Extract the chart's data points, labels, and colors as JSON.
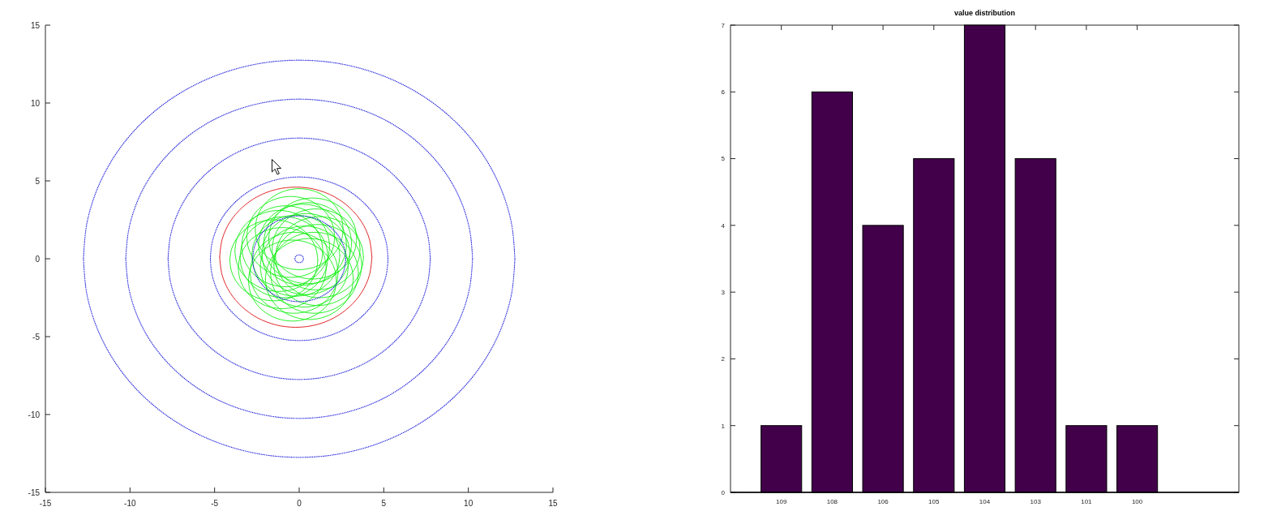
{
  "chart_data": [
    {
      "type": "line",
      "xlim": [
        -15,
        15
      ],
      "ylim": [
        -15,
        15
      ],
      "xticks": [
        -15,
        -10,
        -5,
        0,
        5,
        10,
        15
      ],
      "yticks": [
        -15,
        -10,
        -5,
        0,
        5,
        10,
        15
      ],
      "series": [
        {
          "color": "#dd1111",
          "line_style": "solid",
          "x": [
            4.3,
            4.15,
            3.7,
            2.98,
            2.05,
            0.96,
            -0.2,
            -1.36,
            -2.45,
            -3.38,
            -4.1,
            -4.55,
            -4.7
          ],
          "values": [
            0.1,
            1.26,
            2.35,
            3.28,
            4.0,
            4.45,
            4.6,
            4.45,
            4.0,
            3.28,
            2.35,
            1.26,
            0.1
          ]
        },
        {
          "color": "#dd1111",
          "line_style": "solid",
          "x": [
            -4.7,
            -4.55,
            -4.1,
            -3.38,
            -2.45,
            -1.36,
            -0.2,
            0.96,
            2.05,
            2.98,
            3.7,
            4.15,
            4.3
          ],
          "values": [
            0.1,
            -1.06,
            -2.15,
            -3.08,
            -3.8,
            -4.25,
            -4.4,
            -4.25,
            -3.8,
            -3.08,
            -2.15,
            -1.06,
            0.1
          ]
        },
        {
          "color": "#11ee11",
          "line_style": "solid",
          "x": [
            1.1,
            1.01,
            0.75,
            0.34,
            -0.2,
            -0.83,
            -1.5,
            -2.17,
            -2.8,
            -3.34,
            -3.75,
            -4.01,
            -4.1
          ],
          "values": [
            -0.1,
            0.57,
            1.2,
            1.74,
            2.15,
            2.41,
            2.5,
            2.41,
            2.15,
            1.74,
            1.2,
            0.57,
            -0.1
          ]
        },
        {
          "color": "#11ee11",
          "line_style": "solid",
          "x": [
            -4.1,
            -4.01,
            -3.75,
            -3.34,
            -2.8,
            -2.17,
            -1.5,
            -0.83,
            -0.2,
            0.34,
            0.75,
            1.01,
            1.1
          ],
          "values": [
            -0.1,
            -0.77,
            -1.4,
            -1.94,
            -2.35,
            -2.61,
            -2.7,
            -2.61,
            -2.35,
            -1.94,
            -1.4,
            -0.77,
            -0.1
          ]
        },
        {
          "color": "#11ee11",
          "line_style": "solid",
          "x": [
            2.6,
            2.51,
            2.25,
            1.84,
            1.3,
            0.67,
            0,
            -0.67,
            -1.3,
            -1.84,
            -2.25,
            -2.51,
            -2.6
          ],
          "values": [
            1.9,
            2.57,
            3.2,
            3.74,
            4.15,
            4.41,
            4.5,
            4.41,
            4.15,
            3.74,
            3.2,
            2.57,
            1.9
          ]
        },
        {
          "color": "#11ee11",
          "line_style": "solid",
          "x": [
            -2.6,
            -2.51,
            -2.25,
            -1.84,
            -1.3,
            -0.67,
            0,
            0.67,
            1.3,
            1.84,
            2.25,
            2.51,
            2.6
          ],
          "values": [
            1.9,
            1.23,
            0.6,
            0.06,
            -0.35,
            -0.61,
            -0.7,
            -0.61,
            -0.35,
            0.06,
            0.6,
            1.23,
            1.9
          ]
        },
        {
          "color": "#11ee11",
          "line_style": "solid",
          "x": [
            3.8,
            3.71,
            3.45,
            3.04,
            2.5,
            1.87,
            1.2,
            0.53,
            -0.1,
            -0.64,
            -1.05,
            -1.31,
            -1.4
          ],
          "values": [
            0.1,
            0.77,
            1.4,
            1.94,
            2.35,
            2.61,
            2.7,
            2.61,
            2.35,
            1.94,
            1.4,
            0.77,
            0.1
          ]
        },
        {
          "color": "#11ee11",
          "line_style": "solid",
          "x": [
            -1.4,
            -1.31,
            -1.05,
            -0.64,
            -0.1,
            0.53,
            1.2,
            1.87,
            2.5,
            3.04,
            3.45,
            3.71,
            3.8
          ],
          "values": [
            0.1,
            -0.57,
            -1.2,
            -1.74,
            -2.15,
            -2.41,
            -2.5,
            -2.41,
            -2.15,
            -1.74,
            -1.2,
            -0.57,
            0.1
          ]
        },
        {
          "color": "#11ee11",
          "line_style": "solid",
          "x": [
            2.2,
            2.11,
            1.85,
            1.44,
            0.9,
            0.27,
            -0.4,
            -1.07,
            -1.7,
            -2.24,
            -2.65,
            -2.91,
            -3.0
          ],
          "values": [
            -1.4,
            -0.73,
            -0.1,
            0.44,
            0.85,
            1.11,
            1.2,
            1.11,
            0.85,
            0.44,
            -0.1,
            -0.73,
            -1.4
          ]
        },
        {
          "color": "#11ee11",
          "line_style": "solid",
          "x": [
            -3.0,
            -2.91,
            -2.65,
            -2.24,
            -1.7,
            -1.07,
            -0.4,
            0.27,
            0.9,
            1.44,
            1.85,
            2.11,
            2.2
          ],
          "values": [
            -1.4,
            -2.07,
            -2.7,
            -3.24,
            -3.65,
            -3.91,
            -4.0,
            -3.91,
            -3.65,
            -3.24,
            -2.7,
            -2.07,
            -1.4
          ]
        },
        {
          "color": "#11ee11",
          "line_style": "solid",
          "x": [
            3.1,
            3.01,
            2.75,
            2.34,
            1.8,
            1.17,
            0.5,
            -0.17,
            -0.8,
            -1.34,
            -1.75,
            -2.01,
            -2.1
          ],
          "values": [
            1.0,
            1.67,
            2.3,
            2.84,
            3.25,
            3.51,
            3.6,
            3.51,
            3.25,
            2.84,
            2.3,
            1.67,
            1.0
          ]
        },
        {
          "color": "#11ee11",
          "line_style": "solid",
          "x": [
            -2.1,
            -2.01,
            -1.75,
            -1.34,
            -0.8,
            -0.17,
            0.5,
            1.17,
            1.8,
            2.34,
            2.75,
            3.01,
            3.1
          ],
          "values": [
            1.0,
            0.33,
            -0.3,
            -0.84,
            -1.25,
            -1.51,
            -1.6,
            -1.51,
            -1.25,
            -0.84,
            -0.3,
            0.33,
            1.0
          ]
        },
        {
          "color": "#11ee11",
          "line_style": "solid",
          "x": [
            1.8,
            1.71,
            1.45,
            1.04,
            0.5,
            -0.13,
            -0.8,
            -1.47,
            -2.1,
            -2.64,
            -3.05,
            -3.31,
            -3.4
          ],
          "values": [
            0.8,
            1.47,
            2.1,
            2.64,
            3.05,
            3.31,
            3.4,
            3.31,
            3.05,
            2.64,
            2.1,
            1.47,
            0.8
          ]
        },
        {
          "color": "#11ee11",
          "line_style": "solid",
          "x": [
            -3.4,
            -3.31,
            -3.05,
            -2.64,
            -2.1,
            -1.47,
            -0.8,
            -0.13,
            0.5,
            1.04,
            1.45,
            1.71,
            1.8
          ],
          "values": [
            0.8,
            0.13,
            -0.5,
            -1.04,
            -1.45,
            -1.71,
            -1.8,
            -1.71,
            -1.45,
            -1.04,
            -0.5,
            0.13,
            0.8
          ]
        },
        {
          "color": "#11ee11",
          "line_style": "solid",
          "x": [
            3.5,
            3.41,
            3.15,
            2.74,
            2.2,
            1.57,
            0.9,
            0.23,
            -0.4,
            -0.94,
            -1.35,
            -1.61,
            -1.7
          ],
          "values": [
            -0.9,
            -0.23,
            0.4,
            0.94,
            1.35,
            1.61,
            1.7,
            1.61,
            1.35,
            0.94,
            0.4,
            -0.23,
            -0.9
          ]
        },
        {
          "color": "#11ee11",
          "line_style": "solid",
          "x": [
            -1.7,
            -1.61,
            -1.35,
            -0.94,
            -0.4,
            0.23,
            0.9,
            1.57,
            2.2,
            2.74,
            3.15,
            3.41,
            3.5
          ],
          "values": [
            -0.9,
            -1.57,
            -2.2,
            -2.74,
            -3.15,
            -3.41,
            -3.5,
            -3.41,
            -3.15,
            -2.74,
            -2.2,
            -1.57,
            -0.9
          ]
        },
        {
          "color": "#11ee11",
          "line_style": "solid",
          "x": [
            2.4,
            2.31,
            2.05,
            1.64,
            1.1,
            0.47,
            -0.2,
            -0.87,
            -1.5,
            -2.04,
            -2.45,
            -2.71,
            -2.8
          ],
          "values": [
            0.2,
            0.87,
            1.5,
            2.04,
            2.45,
            2.71,
            2.8,
            2.71,
            2.45,
            2.04,
            1.5,
            0.87,
            0.2
          ]
        },
        {
          "color": "#11ee11",
          "line_style": "solid",
          "x": [
            -2.8,
            -2.71,
            -2.45,
            -2.04,
            -1.5,
            -0.87,
            -0.2,
            0.47,
            1.1,
            1.64,
            2.05,
            2.31,
            2.4
          ],
          "values": [
            0.2,
            -0.47,
            -1.1,
            -1.64,
            -2.05,
            -2.31,
            -2.4,
            -2.31,
            -2.05,
            -1.64,
            -1.1,
            -0.47,
            0.2
          ]
        },
        {
          "color": "#11ee11",
          "line_style": "solid",
          "x": [
            2.9,
            2.81,
            2.55,
            2.14,
            1.6,
            0.97,
            0.3,
            -0.37,
            -1.0,
            -1.54,
            -1.95,
            -2.21,
            -2.3
          ],
          "values": [
            -0.5,
            0.17,
            0.8,
            1.34,
            1.75,
            2.01,
            2.1,
            2.01,
            1.75,
            1.34,
            0.8,
            0.17,
            -0.5
          ]
        },
        {
          "color": "#11ee11",
          "line_style": "solid",
          "x": [
            -2.3,
            -2.21,
            -1.95,
            -1.54,
            -1.0,
            -0.37,
            0.3,
            0.97,
            1.6,
            2.14,
            2.55,
            2.81,
            2.9
          ],
          "values": [
            -0.5,
            -1.17,
            -1.8,
            -2.34,
            -2.75,
            -3.01,
            -3.1,
            -3.01,
            -2.75,
            -2.34,
            -1.8,
            -1.17,
            -0.5
          ]
        },
        {
          "color": "#11ee11",
          "line_style": "solid",
          "x": [
            1.6,
            1.51,
            1.25,
            0.84,
            0.3,
            -0.33,
            -1.0,
            -1.67,
            -2.3,
            -2.84,
            -3.25,
            -3.51,
            -3.6
          ],
          "values": [
            -0.6,
            0.07,
            0.7,
            1.24,
            1.65,
            1.91,
            2.0,
            1.91,
            1.65,
            1.24,
            0.7,
            0.07,
            -0.6
          ]
        },
        {
          "color": "#11ee11",
          "line_style": "solid",
          "x": [
            -3.6,
            -3.51,
            -3.25,
            -2.84,
            -2.3,
            -1.67,
            -1.0,
            -0.33,
            0.3,
            0.84,
            1.25,
            1.51,
            1.6
          ],
          "values": [
            -0.6,
            -1.27,
            -1.9,
            -2.44,
            -2.85,
            -3.11,
            -3.2,
            -3.11,
            -2.85,
            -2.44,
            -1.9,
            -1.27,
            -0.6
          ]
        },
        {
          "color": "#11ee11",
          "line_style": "solid",
          "x": [
            3.6,
            3.51,
            3.25,
            2.84,
            2.3,
            1.67,
            1.0,
            0.33,
            -0.3,
            -0.84,
            -1.25,
            -1.51,
            -1.6
          ],
          "values": [
            0.6,
            1.27,
            1.9,
            2.44,
            2.85,
            3.11,
            3.2,
            3.11,
            2.85,
            2.44,
            1.9,
            1.27,
            0.6
          ]
        },
        {
          "color": "#11ee11",
          "line_style": "solid",
          "x": [
            -1.6,
            -1.51,
            -1.25,
            -0.84,
            -0.3,
            0.33,
            1.0,
            1.67,
            2.3,
            2.84,
            3.25,
            3.51,
            3.6
          ],
          "values": [
            0.6,
            -0.07,
            -0.7,
            -1.24,
            -1.65,
            -1.91,
            -2.0,
            -1.91,
            -1.65,
            -1.24,
            -0.7,
            -0.07,
            0.6
          ]
        },
        {
          "color": "#11ee11",
          "line_style": "solid",
          "x": [
            2.1,
            2.01,
            1.75,
            1.34,
            0.8,
            0.17,
            -0.5,
            -1.17,
            -1.8,
            -2.34,
            -2.75,
            -3.01,
            -3.1
          ],
          "values": [
            1.4,
            2.07,
            2.7,
            3.24,
            3.65,
            3.91,
            4.0,
            3.91,
            3.65,
            3.24,
            2.7,
            2.07,
            1.4
          ]
        },
        {
          "color": "#11ee11",
          "line_style": "solid",
          "x": [
            -3.1,
            -3.01,
            -2.75,
            -2.34,
            -1.8,
            -1.17,
            -0.5,
            0.17,
            0.8,
            1.34,
            1.75,
            2.01,
            2.1
          ],
          "values": [
            1.4,
            0.73,
            0.1,
            -0.44,
            -0.85,
            -1.11,
            -1.2,
            -1.11,
            -0.85,
            -0.44,
            0.1,
            0.73,
            1.4
          ]
        },
        {
          "color": "#11ee11",
          "line_style": "solid",
          "x": [
            3.2,
            3.11,
            2.85,
            2.44,
            1.9,
            1.27,
            0.6,
            -0.07,
            -0.7,
            -1.24,
            -1.65,
            -1.91,
            -2.0
          ],
          "values": [
            -1.3,
            -0.63,
            0.0,
            0.54,
            0.95,
            1.21,
            1.3,
            1.21,
            0.95,
            0.54,
            0.0,
            -0.63,
            -1.3
          ]
        },
        {
          "color": "#11ee11",
          "line_style": "solid",
          "x": [
            -2.0,
            -1.91,
            -1.65,
            -1.24,
            -0.7,
            -0.07,
            0.6,
            1.27,
            1.9,
            2.44,
            2.85,
            3.11,
            3.2
          ],
          "values": [
            -1.3,
            -1.97,
            -2.6,
            -3.14,
            -3.55,
            -3.81,
            -3.9,
            -3.81,
            -3.55,
            -3.14,
            -2.6,
            -1.97,
            -1.3
          ]
        },
        {
          "color": "#11ee11",
          "line_style": "solid",
          "x": [
            1.7,
            1.61,
            1.35,
            0.94,
            0.4,
            -0.23,
            -0.9,
            -1.57,
            -2.2,
            -2.74,
            -3.15,
            -3.41,
            -3.5
          ],
          "values": [
            0.1,
            0.77,
            1.4,
            1.94,
            2.35,
            2.61,
            2.7,
            2.61,
            2.35,
            1.94,
            1.4,
            0.77,
            0.1
          ]
        },
        {
          "color": "#11ee11",
          "line_style": "solid",
          "x": [
            -3.5,
            -3.41,
            -3.15,
            -2.74,
            -2.2,
            -1.57,
            -0.9,
            -0.23,
            0.4,
            0.94,
            1.35,
            1.61,
            1.7
          ],
          "values": [
            0.1,
            -0.57,
            -1.2,
            -1.74,
            -2.15,
            -2.41,
            -2.5,
            -2.41,
            -2.15,
            -1.74,
            -1.2,
            -0.57,
            0.1
          ]
        },
        {
          "color": "#11ee11",
          "line_style": "solid",
          "x": [
            2.8,
            2.71,
            2.45,
            2.04,
            1.5,
            0.87,
            0.2,
            -0.47,
            -1.1,
            -1.64,
            -2.05,
            -2.31,
            -2.4
          ],
          "values": [
            0.9,
            1.57,
            2.2,
            2.74,
            3.15,
            3.41,
            3.5,
            3.41,
            3.15,
            2.74,
            2.2,
            1.57,
            0.9
          ]
        },
        {
          "color": "#11ee11",
          "line_style": "solid",
          "x": [
            -2.4,
            -2.31,
            -2.05,
            -1.64,
            -1.1,
            -0.47,
            0.2,
            0.87,
            1.5,
            2.04,
            2.45,
            2.71,
            2.8
          ],
          "values": [
            0.9,
            0.23,
            -0.4,
            -0.94,
            -1.35,
            -1.61,
            -1.7,
            -1.61,
            -1.35,
            -0.94,
            -0.4,
            0.23,
            0.9
          ]
        },
        {
          "color": "#11ee11",
          "line_style": "solid",
          "x": [
            3.7,
            3.61,
            3.35,
            2.94,
            2.4,
            1.77,
            1.1,
            0.43,
            -0.2,
            -0.74,
            -1.15,
            -1.41,
            -1.5
          ],
          "values": [
            -0.4,
            0.27,
            0.9,
            1.44,
            1.85,
            2.11,
            2.2,
            2.11,
            1.85,
            1.44,
            0.9,
            0.27,
            -0.4
          ]
        },
        {
          "color": "#11ee11",
          "line_style": "solid",
          "x": [
            -1.5,
            -1.41,
            -1.15,
            -0.74,
            -0.2,
            0.43,
            1.1,
            1.77,
            2.4,
            2.94,
            3.35,
            3.61,
            3.7
          ],
          "values": [
            -0.4,
            -1.07,
            -1.7,
            -2.24,
            -2.65,
            -2.91,
            -3.0,
            -2.91,
            -2.65,
            -2.24,
            -1.7,
            -1.07,
            -0.4
          ]
        },
        {
          "color": "#11ee11",
          "line_style": "solid",
          "x": [
            2.3,
            2.21,
            1.95,
            1.54,
            1.0,
            0.37,
            -0.3,
            -0.97,
            -1.6,
            -2.14,
            -2.55,
            -2.81,
            -2.9
          ],
          "values": [
            -0.9,
            -0.23,
            0.4,
            0.94,
            1.35,
            1.61,
            1.7,
            1.61,
            1.35,
            0.94,
            0.4,
            -0.23,
            -0.9
          ]
        },
        {
          "color": "#11ee11",
          "line_style": "solid",
          "x": [
            -2.9,
            -2.81,
            -2.55,
            -2.14,
            -1.6,
            -0.97,
            -0.3,
            0.37,
            1.0,
            1.54,
            1.95,
            2.21,
            2.3
          ],
          "values": [
            -0.9,
            -1.57,
            -2.2,
            -2.74,
            -3.15,
            -3.41,
            -3.5,
            -3.41,
            -3.15,
            -2.74,
            -2.2,
            -1.57,
            -0.9
          ]
        },
        {
          "color": "#11ee11",
          "line_style": "solid",
          "x": [
            3.0,
            2.91,
            2.65,
            2.24,
            1.7,
            1.07,
            0.4,
            -0.27,
            -0.9,
            -1.44,
            -1.85,
            -2.11,
            -2.2
          ],
          "values": [
            0.3,
            0.97,
            1.6,
            2.14,
            2.55,
            2.81,
            2.9,
            2.81,
            2.55,
            2.14,
            1.6,
            0.97,
            0.3
          ]
        },
        {
          "color": "#11ee11",
          "line_style": "solid",
          "x": [
            -2.2,
            -2.11,
            -1.85,
            -1.44,
            -0.9,
            -0.27,
            0.4,
            1.07,
            1.7,
            2.24,
            2.65,
            2.91,
            3.0
          ],
          "values": [
            0.3,
            -0.37,
            -1.0,
            -1.54,
            -1.95,
            -2.21,
            -2.3,
            -2.21,
            -1.95,
            -1.54,
            -1.0,
            -0.37,
            0.3
          ]
        },
        {
          "color": "#11ee11",
          "line_style": "solid",
          "x": [
            1.4,
            1.31,
            1.05,
            0.64,
            0.1,
            -0.53,
            -1.2,
            -1.87,
            -2.5,
            -3.04,
            -3.45,
            -3.71,
            -3.8
          ],
          "values": [
            0.5,
            1.17,
            1.8,
            2.34,
            2.75,
            3.01,
            3.1,
            3.01,
            2.75,
            2.34,
            1.8,
            1.17,
            0.5
          ]
        },
        {
          "color": "#11ee11",
          "line_style": "solid",
          "x": [
            -3.8,
            -3.71,
            -3.45,
            -3.04,
            -2.5,
            -1.87,
            -1.2,
            -0.53,
            0.1,
            0.64,
            1.05,
            1.31,
            1.4
          ],
          "values": [
            0.5,
            -0.17,
            -0.8,
            -1.34,
            -1.75,
            -2.01,
            -2.1,
            -2.01,
            -1.75,
            -1.34,
            -0.8,
            -0.17,
            0.5
          ]
        },
        {
          "color": "#11ee11",
          "line_style": "solid",
          "x": [
            3.4,
            3.31,
            3.05,
            2.64,
            2.1,
            1.47,
            0.8,
            0.13,
            -0.5,
            -1.04,
            -1.45,
            -1.71,
            -1.8
          ],
          "values": [
            1.3,
            1.97,
            2.6,
            3.14,
            3.55,
            3.81,
            3.9,
            3.81,
            3.55,
            3.14,
            2.6,
            1.97,
            1.3
          ]
        },
        {
          "color": "#11ee11",
          "line_style": "solid",
          "x": [
            -1.8,
            -1.71,
            -1.45,
            -1.04,
            -0.5,
            0.13,
            0.8,
            1.47,
            2.1,
            2.64,
            3.05,
            3.31,
            3.4
          ],
          "values": [
            1.3,
            0.63,
            0.0,
            -0.54,
            -0.95,
            -1.21,
            -1.3,
            -1.21,
            -0.95,
            -0.54,
            0.0,
            0.63,
            1.3
          ]
        },
        {
          "color": "#2222dd",
          "line_style": "dotted",
          "x": [
            0.25,
            0.22,
            0.13,
            0,
            -0.13,
            -0.22,
            -0.25
          ],
          "values": [
            0,
            0.13,
            0.22,
            0.25,
            0.22,
            0.13,
            0
          ]
        },
        {
          "color": "#2222dd",
          "line_style": "dotted",
          "x": [
            -0.25,
            -0.22,
            -0.13,
            0,
            0.13,
            0.22,
            0.25
          ],
          "values": [
            0,
            -0.13,
            -0.22,
            -0.25,
            -0.22,
            -0.13,
            0
          ]
        },
        {
          "color": "#2222dd",
          "line_style": "dotted",
          "x": [
            2.75,
            2.66,
            2.38,
            1.94,
            1.38,
            0.71,
            0,
            -0.71,
            -1.38,
            -1.94,
            -2.38,
            -2.66,
            -2.75
          ],
          "values": [
            0,
            0.71,
            1.38,
            1.94,
            2.38,
            2.66,
            2.75,
            2.66,
            2.38,
            1.94,
            1.38,
            0.71,
            0
          ]
        },
        {
          "color": "#2222dd",
          "line_style": "dotted",
          "x": [
            -2.75,
            -2.66,
            -2.38,
            -1.94,
            -1.38,
            -0.71,
            0,
            0.71,
            1.38,
            1.94,
            2.38,
            2.66,
            2.75
          ],
          "values": [
            0,
            -0.71,
            -1.38,
            -1.94,
            -2.38,
            -2.66,
            -2.75,
            -2.66,
            -2.38,
            -1.94,
            -1.38,
            -0.71,
            0
          ]
        },
        {
          "color": "#2222dd",
          "line_style": "dotted",
          "x": [
            5.25,
            5.17,
            4.93,
            4.55,
            4.02,
            3.37,
            2.63,
            1.8,
            0.91,
            0,
            -0.91,
            -1.8,
            -2.63,
            -3.37,
            -4.02,
            -4.55,
            -4.93,
            -5.17,
            -5.25
          ],
          "values": [
            0,
            0.91,
            1.8,
            2.63,
            3.37,
            4.02,
            4.55,
            4.93,
            5.17,
            5.25,
            5.17,
            4.93,
            4.55,
            4.02,
            3.37,
            2.63,
            1.8,
            0.91,
            0
          ]
        },
        {
          "color": "#2222dd",
          "line_style": "dotted",
          "x": [
            -5.25,
            -5.17,
            -4.93,
            -4.55,
            -4.02,
            -3.37,
            -2.63,
            -1.8,
            -0.91,
            0,
            0.91,
            1.8,
            2.63,
            3.37,
            4.02,
            4.55,
            4.93,
            5.17,
            5.25
          ],
          "values": [
            0,
            -0.91,
            -1.8,
            -2.63,
            -3.37,
            -4.02,
            -4.55,
            -4.93,
            -5.17,
            -5.25,
            -5.17,
            -4.93,
            -4.55,
            -4.02,
            -3.37,
            -2.63,
            -1.8,
            -0.91,
            0
          ]
        },
        {
          "color": "#2222dd",
          "line_style": "dotted",
          "x": [
            7.75,
            7.63,
            7.28,
            6.71,
            5.94,
            4.98,
            3.88,
            2.65,
            1.35,
            0,
            -1.35,
            -2.65,
            -3.88,
            -4.98,
            -5.94,
            -6.71,
            -7.28,
            -7.63,
            -7.75
          ],
          "values": [
            0,
            1.35,
            2.65,
            3.88,
            4.98,
            5.94,
            6.71,
            7.28,
            7.63,
            7.75,
            7.63,
            7.28,
            6.71,
            5.94,
            4.98,
            3.88,
            2.65,
            1.35,
            0
          ]
        },
        {
          "color": "#2222dd",
          "line_style": "dotted",
          "x": [
            -7.75,
            -7.63,
            -7.28,
            -6.71,
            -5.94,
            -4.98,
            -3.88,
            -2.65,
            -1.35,
            0,
            1.35,
            2.65,
            3.88,
            4.98,
            5.94,
            6.71,
            7.28,
            7.63,
            7.75
          ],
          "values": [
            0,
            -1.35,
            -2.65,
            -3.88,
            -4.98,
            -5.94,
            -6.71,
            -7.28,
            -7.63,
            -7.75,
            -7.63,
            -7.28,
            -6.71,
            -5.94,
            -4.98,
            -3.88,
            -2.65,
            -1.35,
            0
          ]
        },
        {
          "color": "#2222dd",
          "line_style": "dotted",
          "x": [
            10.25,
            10.09,
            9.63,
            8.88,
            7.85,
            6.59,
            5.13,
            3.51,
            1.78,
            0,
            -1.78,
            -3.51,
            -5.13,
            -6.59,
            -7.85,
            -8.88,
            -9.63,
            -10.09,
            -10.25
          ],
          "values": [
            0,
            1.78,
            3.51,
            5.13,
            6.59,
            7.85,
            8.88,
            9.63,
            10.09,
            10.25,
            10.09,
            9.63,
            8.88,
            7.85,
            6.59,
            5.13,
            3.51,
            1.78,
            0
          ]
        },
        {
          "color": "#2222dd",
          "line_style": "dotted",
          "x": [
            -10.25,
            -10.09,
            -9.63,
            -8.88,
            -7.85,
            -6.59,
            -5.13,
            -3.51,
            -1.78,
            0,
            1.78,
            3.51,
            5.13,
            6.59,
            7.85,
            8.88,
            9.63,
            10.09,
            10.25
          ],
          "values": [
            0,
            -1.78,
            -3.51,
            -5.13,
            -6.59,
            -7.85,
            -8.88,
            -9.63,
            -10.09,
            -10.25,
            -10.09,
            -9.63,
            -8.88,
            -7.85,
            -6.59,
            -5.13,
            -3.51,
            -1.78,
            0
          ]
        },
        {
          "color": "#2222dd",
          "line_style": "dotted",
          "x": [
            12.75,
            12.56,
            11.98,
            11.04,
            9.77,
            8.2,
            6.38,
            4.36,
            2.21,
            0,
            -2.21,
            -4.36,
            -6.38,
            -8.2,
            -9.77,
            -11.04,
            -11.98,
            -12.56,
            -12.75
          ],
          "values": [
            0,
            2.21,
            4.36,
            6.38,
            8.2,
            9.77,
            11.04,
            11.98,
            12.56,
            12.75,
            12.56,
            11.98,
            11.04,
            9.77,
            8.2,
            6.38,
            4.36,
            2.21,
            0
          ]
        },
        {
          "color": "#2222dd",
          "line_style": "dotted",
          "x": [
            -12.75,
            -12.56,
            -11.98,
            -11.04,
            -9.77,
            -8.2,
            -6.38,
            -4.36,
            -2.21,
            0,
            2.21,
            4.36,
            6.38,
            8.2,
            9.77,
            11.04,
            11.98,
            12.56,
            12.75
          ],
          "values": [
            0,
            -2.21,
            -4.36,
            -6.38,
            -8.2,
            -9.77,
            -11.04,
            -11.98,
            -12.56,
            -12.75,
            -12.56,
            -11.98,
            -11.04,
            -9.77,
            -8.2,
            -6.38,
            -4.36,
            -2.21,
            0
          ]
        }
      ]
    },
    {
      "type": "bar",
      "title": "value distribution",
      "categories": [
        "109",
        "108",
        "106",
        "105",
        "104",
        "103",
        "101",
        "100"
      ],
      "values": [
        1,
        6,
        4,
        5,
        7,
        5,
        1,
        1
      ],
      "color": "#42004b",
      "ylim": [
        0,
        7
      ],
      "yticks": [
        0,
        1,
        2,
        3,
        4,
        5,
        6,
        7
      ]
    }
  ]
}
